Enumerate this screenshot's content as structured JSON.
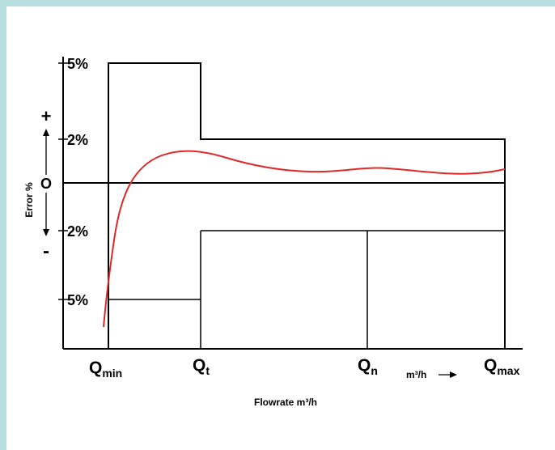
{
  "y_ticks": {
    "plus5": "5%",
    "plus2": "2%",
    "minus2": "2%",
    "minus5": "5%"
  },
  "y_axis": {
    "title": "Error %",
    "plus": "+",
    "zero": "O",
    "minus": "-"
  },
  "x_labels": {
    "qmin": {
      "main": "Q",
      "sub": "min"
    },
    "qt": {
      "main": "Q",
      "sub": "t"
    },
    "qn": {
      "main": "Q",
      "sub": "n"
    },
    "unit": "m³/h",
    "qmax": {
      "main": "Q",
      "sub": "max"
    }
  },
  "caption": "Flowrate m³/h",
  "colors": {
    "background": "#b7dfe0",
    "panel": "#ffffff",
    "curve": "#e02828",
    "lines": "#000000"
  },
  "chart_data": {
    "type": "line",
    "x_markers": [
      "Qmin",
      "Qt",
      "Qn",
      "Qmax"
    ],
    "upper_limit": [
      {
        "x_from": "Qmin",
        "x_to": "Qt",
        "error_pct": 5
      },
      {
        "x_from": "Qt",
        "x_to": "Qmax",
        "error_pct": 2
      }
    ],
    "lower_limit": [
      {
        "x_from": "Qmin",
        "x_to": "Qt",
        "error_pct": -5
      },
      {
        "x_from": "Qt",
        "x_to": "Qmax",
        "error_pct": -2
      }
    ],
    "error_curve": [
      {
        "x": "below Qmin",
        "error_pct": -6.2
      },
      {
        "x": "Qmin",
        "error_pct": -4.9
      },
      {
        "x": "between Qmin and Qt",
        "error_pct": 0.5
      },
      {
        "x": "Qt",
        "error_pct": 1.3
      },
      {
        "x": "between Qt and Qn",
        "error_pct": 0.4
      },
      {
        "x": "Qn",
        "error_pct": 0.6
      },
      {
        "x": "Qmax",
        "error_pct": 0.5
      }
    ]
  }
}
